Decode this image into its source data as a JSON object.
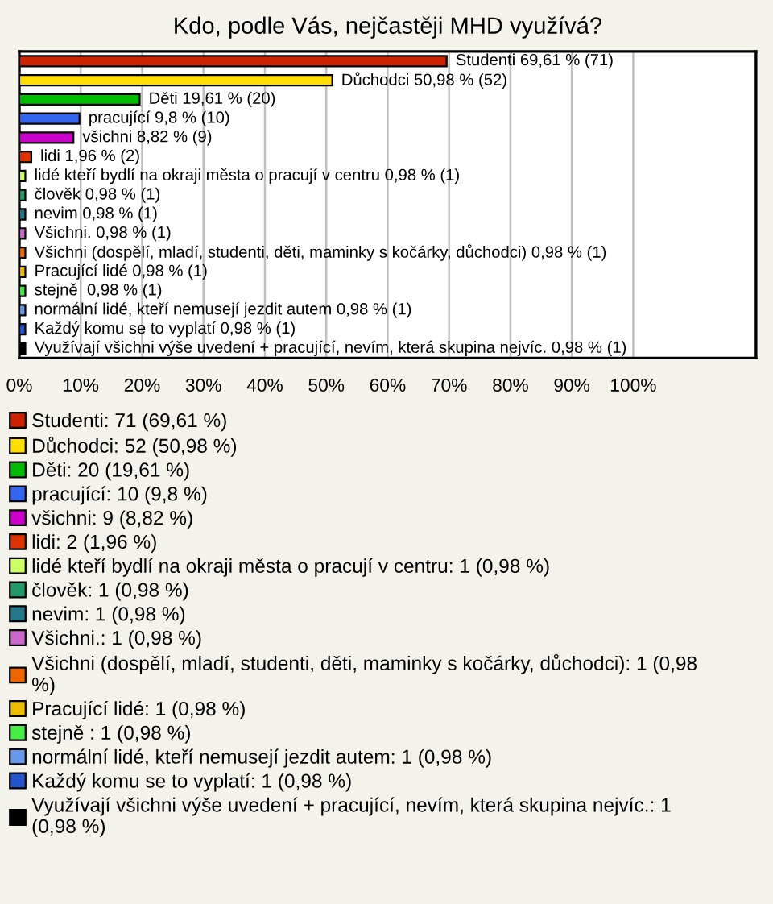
{
  "chart_data": {
    "type": "bar",
    "orientation": "horizontal",
    "title": "Kdo, podle Vás, nejčastěji MHD využívá?",
    "categories": [
      null,
      null,
      null,
      null,
      null,
      null,
      null,
      null,
      null,
      null,
      null,
      null,
      null,
      null,
      null,
      null
    ],
    "series": [
      {
        "name": "Studenti: 71 (69,61 %)",
        "color": "#cc2200",
        "values": [
          69.61,
          null,
          null,
          null,
          null,
          null,
          null,
          null,
          null,
          null,
          null,
          null,
          null,
          null,
          null,
          null
        ],
        "value_labels": [
          "Studenti 69,61 % (71)",
          null,
          null,
          null,
          null,
          null,
          null,
          null,
          null,
          null,
          null,
          null,
          null,
          null,
          null,
          null
        ]
      },
      {
        "name": "Důchodci: 52 (50,98 %)",
        "color": "#ffdd00",
        "values": [
          null,
          50.98,
          null,
          null,
          null,
          null,
          null,
          null,
          null,
          null,
          null,
          null,
          null,
          null,
          null,
          null
        ],
        "value_labels": [
          null,
          "Důchodci 50,98 % (52)",
          null,
          null,
          null,
          null,
          null,
          null,
          null,
          null,
          null,
          null,
          null,
          null,
          null,
          null
        ]
      },
      {
        "name": "Děti: 20 (19,61 %)",
        "color": "#00bb00",
        "values": [
          null,
          null,
          19.61,
          null,
          null,
          null,
          null,
          null,
          null,
          null,
          null,
          null,
          null,
          null,
          null,
          null
        ],
        "value_labels": [
          null,
          null,
          "Děti 19,61 % (20)",
          null,
          null,
          null,
          null,
          null,
          null,
          null,
          null,
          null,
          null,
          null,
          null,
          null
        ]
      },
      {
        "name": "pracující: 10 (9,8 %)",
        "color": "#3366ee",
        "values": [
          null,
          null,
          null,
          9.8,
          null,
          null,
          null,
          null,
          null,
          null,
          null,
          null,
          null,
          null,
          null,
          null
        ],
        "value_labels": [
          null,
          null,
          null,
          "pracující 9,8 % (10)",
          null,
          null,
          null,
          null,
          null,
          null,
          null,
          null,
          null,
          null,
          null,
          null
        ]
      },
      {
        "name": "všichni: 9 (8,82 %)",
        "color": "#cc00cc",
        "values": [
          null,
          null,
          null,
          null,
          8.82,
          null,
          null,
          null,
          null,
          null,
          null,
          null,
          null,
          null,
          null,
          null
        ],
        "value_labels": [
          null,
          null,
          null,
          null,
          "všichni 8,82 % (9)",
          null,
          null,
          null,
          null,
          null,
          null,
          null,
          null,
          null,
          null,
          null
        ]
      },
      {
        "name": "lidi: 2 (1,96 %)",
        "color": "#dd3300",
        "values": [
          null,
          null,
          null,
          null,
          null,
          1.96,
          null,
          null,
          null,
          null,
          null,
          null,
          null,
          null,
          null,
          null
        ],
        "value_labels": [
          null,
          null,
          null,
          null,
          null,
          "lidi 1,96 % (2)",
          null,
          null,
          null,
          null,
          null,
          null,
          null,
          null,
          null,
          null
        ]
      },
      {
        "name": "lidé kteří bydlí na okraji města o pracují v centru: 1 (0,98 %)",
        "color": "#ccff66",
        "values": [
          null,
          null,
          null,
          null,
          null,
          null,
          0.98,
          null,
          null,
          null,
          null,
          null,
          null,
          null,
          null,
          null
        ],
        "value_labels": [
          null,
          null,
          null,
          null,
          null,
          null,
          "lidé kteří bydlí na okraji města o pracují v centru 0,98 % (1)",
          null,
          null,
          null,
          null,
          null,
          null,
          null,
          null,
          null
        ]
      },
      {
        "name": "člověk: 1 (0,98 %)",
        "color": "#229966",
        "values": [
          null,
          null,
          null,
          null,
          null,
          null,
          null,
          0.98,
          null,
          null,
          null,
          null,
          null,
          null,
          null,
          null
        ],
        "value_labels": [
          null,
          null,
          null,
          null,
          null,
          null,
          null,
          "člověk 0,98 % (1)",
          null,
          null,
          null,
          null,
          null,
          null,
          null,
          null
        ]
      },
      {
        "name": "nevim: 1 (0,98 %)",
        "color": "#227788",
        "values": [
          null,
          null,
          null,
          null,
          null,
          null,
          null,
          null,
          0.98,
          null,
          null,
          null,
          null,
          null,
          null,
          null
        ],
        "value_labels": [
          null,
          null,
          null,
          null,
          null,
          null,
          null,
          null,
          "nevim 0,98 % (1)",
          null,
          null,
          null,
          null,
          null,
          null,
          null
        ]
      },
      {
        "name": "Všichni.: 1 (0,98 %)",
        "color": "#cc66cc",
        "values": [
          null,
          null,
          null,
          null,
          null,
          null,
          null,
          null,
          null,
          0.98,
          null,
          null,
          null,
          null,
          null,
          null
        ],
        "value_labels": [
          null,
          null,
          null,
          null,
          null,
          null,
          null,
          null,
          null,
          "Všichni. 0,98 % (1)",
          null,
          null,
          null,
          null,
          null,
          null
        ]
      },
      {
        "name": "Všichni (dospělí, mladí, studenti, děti, maminky s kočárky, důchodci): 1 (0,98 %)",
        "color": "#ee6600",
        "values": [
          null,
          null,
          null,
          null,
          null,
          null,
          null,
          null,
          null,
          null,
          0.98,
          null,
          null,
          null,
          null,
          null
        ],
        "value_labels": [
          null,
          null,
          null,
          null,
          null,
          null,
          null,
          null,
          null,
          null,
          "Všichni (dospělí, mladí, studenti, děti, maminky s kočárky, důchodci) 0,98 % (1)",
          null,
          null,
          null,
          null,
          null
        ]
      },
      {
        "name": "Pracující lidé: 1 (0,98 %)",
        "color": "#eebb00",
        "values": [
          null,
          null,
          null,
          null,
          null,
          null,
          null,
          null,
          null,
          null,
          null,
          0.98,
          null,
          null,
          null,
          null
        ],
        "value_labels": [
          null,
          null,
          null,
          null,
          null,
          null,
          null,
          null,
          null,
          null,
          null,
          "Pracující lidé 0,98 % (1)",
          null,
          null,
          null,
          null
        ]
      },
      {
        "name": "stejně : 1 (0,98 %)",
        "color": "#44ee44",
        "values": [
          null,
          null,
          null,
          null,
          null,
          null,
          null,
          null,
          null,
          null,
          null,
          null,
          0.98,
          null,
          null,
          null
        ],
        "value_labels": [
          null,
          null,
          null,
          null,
          null,
          null,
          null,
          null,
          null,
          null,
          null,
          null,
          "stejně  0,98 % (1)",
          null,
          null,
          null
        ]
      },
      {
        "name": "normální lidé, kteří nemusejí jezdit autem: 1 (0,98 %)",
        "color": "#6699ee",
        "values": [
          null,
          null,
          null,
          null,
          null,
          null,
          null,
          null,
          null,
          null,
          null,
          null,
          null,
          0.98,
          null,
          null
        ],
        "value_labels": [
          null,
          null,
          null,
          null,
          null,
          null,
          null,
          null,
          null,
          null,
          null,
          null,
          null,
          "normální lidé, kteří nemusejí jezdit autem 0,98 % (1)",
          null,
          null
        ]
      },
      {
        "name": "Každý komu se to vyplatí: 1 (0,98 %)",
        "color": "#2255cc",
        "values": [
          null,
          null,
          null,
          null,
          null,
          null,
          null,
          null,
          null,
          null,
          null,
          null,
          null,
          null,
          0.98,
          null
        ],
        "value_labels": [
          null,
          null,
          null,
          null,
          null,
          null,
          null,
          null,
          null,
          null,
          null,
          null,
          null,
          null,
          "Každý komu se to vyplatí 0,98 % (1)",
          null
        ]
      },
      {
        "name": "Využívají všichni výše uvedení + pracující, nevím, která skupina nejvíc.: 1 (0,98 %)",
        "color": "#000000",
        "values": [
          null,
          null,
          null,
          null,
          null,
          null,
          null,
          null,
          null,
          null,
          null,
          null,
          null,
          null,
          null,
          0.98
        ],
        "value_labels": [
          null,
          null,
          null,
          null,
          null,
          null,
          null,
          null,
          null,
          null,
          null,
          null,
          null,
          null,
          null,
          "Využívají všichni výše uvedení + pracující, nevím, která skupina nejvíc. 0,98 % (1)"
        ]
      }
    ],
    "xlim": [
      0,
      120
    ],
    "xticks": [
      {
        "value": 0,
        "label": "0%"
      },
      {
        "value": 10,
        "label": "10%"
      },
      {
        "value": 20,
        "label": "20%"
      },
      {
        "value": 30,
        "label": "30%"
      },
      {
        "value": 40,
        "label": "40%"
      },
      {
        "value": 50,
        "label": "50%"
      },
      {
        "value": 60,
        "label": "60%"
      },
      {
        "value": 70,
        "label": "70%"
      },
      {
        "value": 80,
        "label": "80%"
      },
      {
        "value": 90,
        "label": "90%"
      },
      {
        "value": 100,
        "label": "100%"
      }
    ],
    "grid": "x",
    "legend": "bottom"
  }
}
